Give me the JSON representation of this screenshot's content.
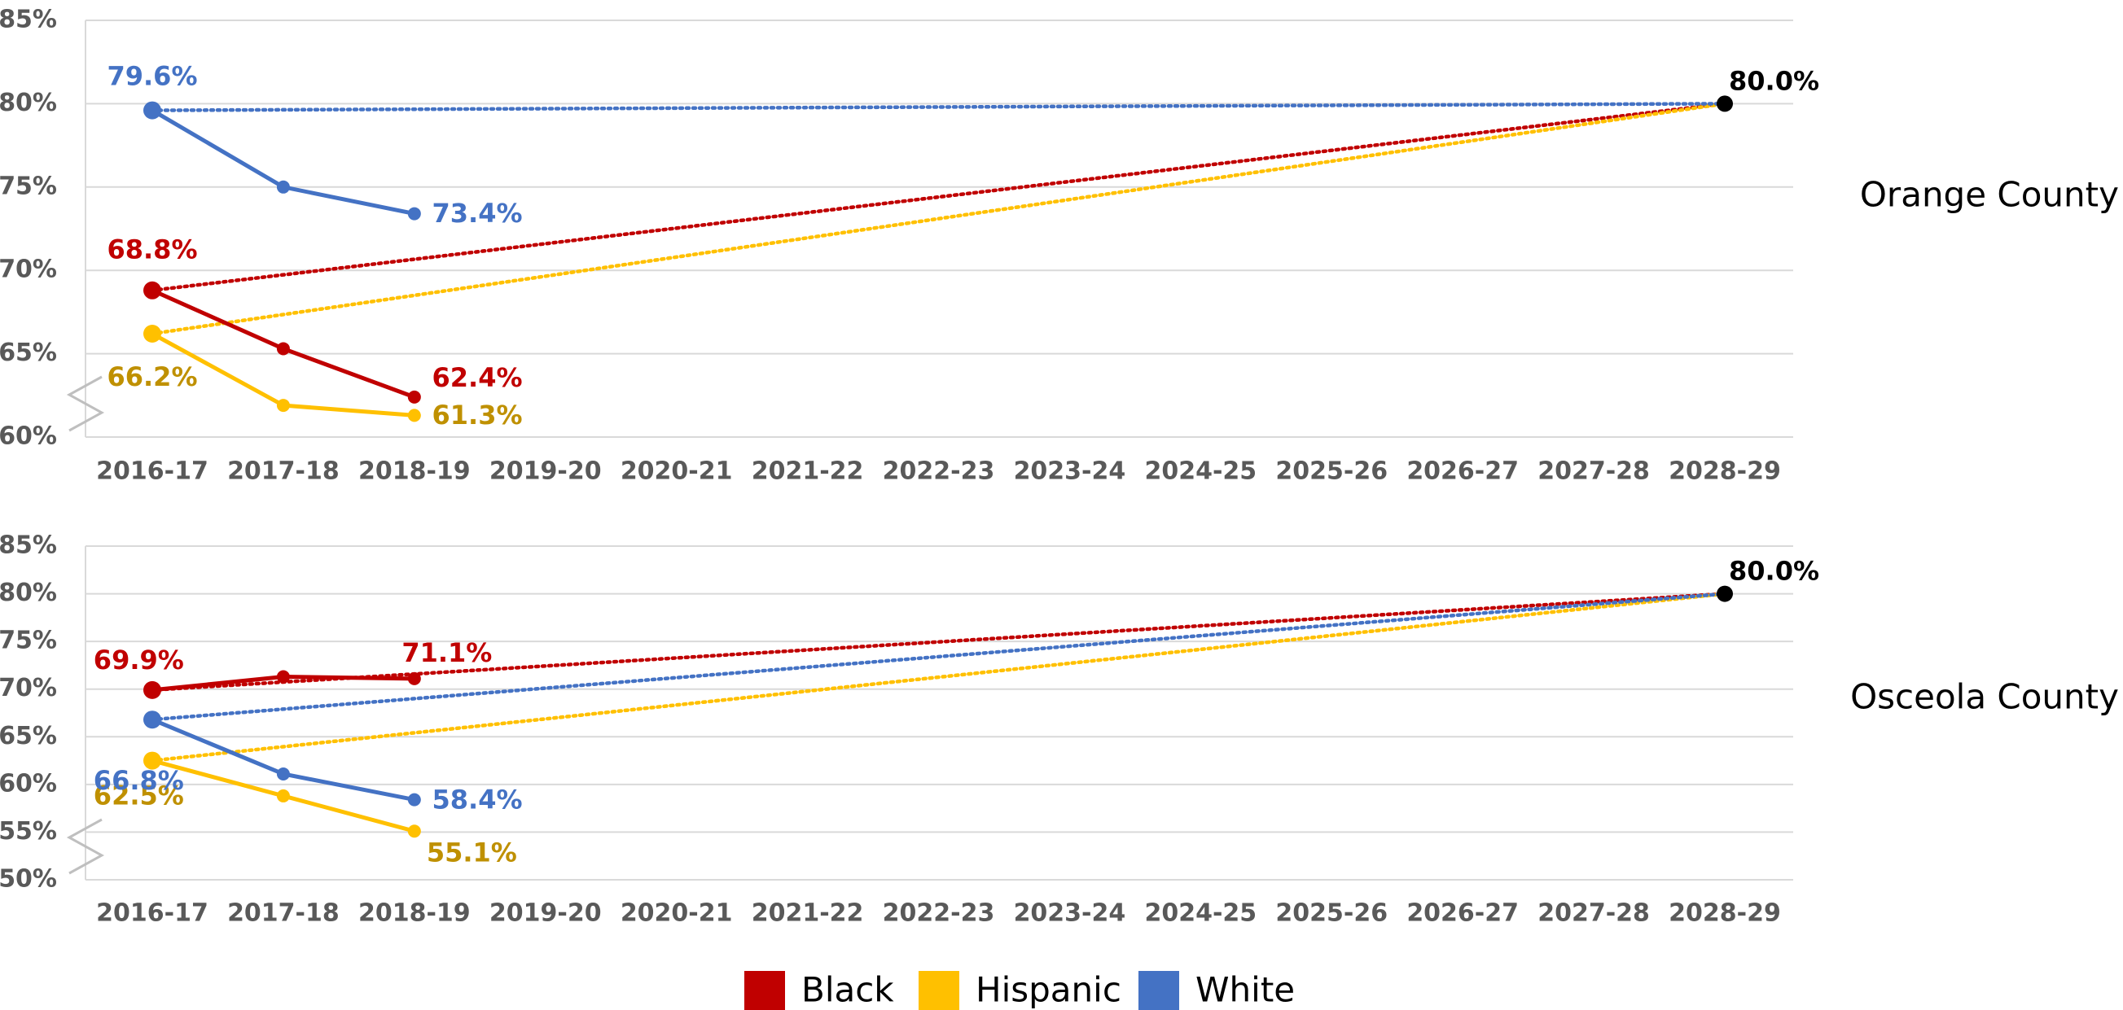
{
  "chart_data": [
    {
      "type": "line",
      "title": "Orange County",
      "categories": [
        "2016-17",
        "2017-18",
        "2018-19",
        "2019-20",
        "2020-21",
        "2021-22",
        "2022-23",
        "2023-24",
        "2024-25",
        "2025-26",
        "2026-27",
        "2027-28",
        "2028-29"
      ],
      "series": [
        {
          "name": "Black",
          "color": "#c00000",
          "label_color": "#c00000",
          "values": [
            68.8,
            65.3,
            62.4,
            null,
            null,
            null,
            null,
            null,
            null,
            null,
            null,
            null,
            null
          ],
          "value_labels": [
            "68.8%",
            null,
            "62.4%",
            null,
            null,
            null,
            null,
            null,
            null,
            null,
            null,
            null,
            null
          ]
        },
        {
          "name": "Hispanic",
          "color": "#ffc000",
          "label_color": "#bf9000",
          "values": [
            66.2,
            61.9,
            61.3,
            null,
            null,
            null,
            null,
            null,
            null,
            null,
            null,
            null,
            null
          ],
          "value_labels": [
            "66.2%",
            null,
            "61.3%",
            null,
            null,
            null,
            null,
            null,
            null,
            null,
            null,
            null,
            null
          ]
        },
        {
          "name": "White",
          "color": "#4472c4",
          "label_color": "#4472c4",
          "values": [
            79.6,
            75.0,
            73.4,
            null,
            null,
            null,
            null,
            null,
            null,
            null,
            null,
            null,
            null
          ],
          "value_labels": [
            "79.6%",
            null,
            "73.4%",
            null,
            null,
            null,
            null,
            null,
            null,
            null,
            null,
            null,
            null
          ]
        }
      ],
      "target": 80,
      "target_label": "80.0%",
      "target_color": "#000000",
      "ylim": [
        60,
        85
      ],
      "yticks": [
        {
          "value": 60,
          "label": "60%"
        },
        {
          "value": 65,
          "label": "65%"
        },
        {
          "value": 70,
          "label": "70%"
        },
        {
          "value": 75,
          "label": "75%"
        },
        {
          "value": 80,
          "label": "80%"
        },
        {
          "value": 85,
          "label": "85%"
        }
      ],
      "grid": true
    },
    {
      "type": "line",
      "title": "Osceola County",
      "categories": [
        "2016-17",
        "2017-18",
        "2018-19",
        "2019-20",
        "2020-21",
        "2021-22",
        "2022-23",
        "2023-24",
        "2024-25",
        "2025-26",
        "2026-27",
        "2027-28",
        "2028-29"
      ],
      "series": [
        {
          "name": "Black",
          "color": "#c00000",
          "label_color": "#c00000",
          "values": [
            69.9,
            71.3,
            71.1,
            null,
            null,
            null,
            null,
            null,
            null,
            null,
            null,
            null,
            null
          ],
          "value_labels": [
            "69.9%",
            null,
            "71.1%",
            null,
            null,
            null,
            null,
            null,
            null,
            null,
            null,
            null,
            null
          ]
        },
        {
          "name": "Hispanic",
          "color": "#ffc000",
          "label_color": "#bf9000",
          "values": [
            62.5,
            58.8,
            55.1,
            null,
            null,
            null,
            null,
            null,
            null,
            null,
            null,
            null,
            null
          ],
          "value_labels": [
            "62.5%",
            null,
            "55.1%",
            null,
            null,
            null,
            null,
            null,
            null,
            null,
            null,
            null,
            null
          ]
        },
        {
          "name": "White",
          "color": "#4472c4",
          "label_color": "#4472c4",
          "values": [
            66.8,
            61.1,
            58.4,
            null,
            null,
            null,
            null,
            null,
            null,
            null,
            null,
            null,
            null
          ],
          "value_labels": [
            "66.8%",
            null,
            "58.4%",
            null,
            null,
            null,
            null,
            null,
            null,
            null,
            null,
            null,
            null
          ]
        }
      ],
      "target": 80,
      "target_label": "80.0%",
      "target_color": "#000000",
      "ylim": [
        50,
        85
      ],
      "yticks": [
        {
          "value": 50,
          "label": "50%"
        },
        {
          "value": 55,
          "label": "55%"
        },
        {
          "value": 60,
          "label": "60%"
        },
        {
          "value": 65,
          "label": "65%"
        },
        {
          "value": 70,
          "label": "70%"
        },
        {
          "value": 75,
          "label": "75%"
        },
        {
          "value": 80,
          "label": "80%"
        },
        {
          "value": 85,
          "label": "85%"
        }
      ],
      "grid": true
    }
  ]
}
